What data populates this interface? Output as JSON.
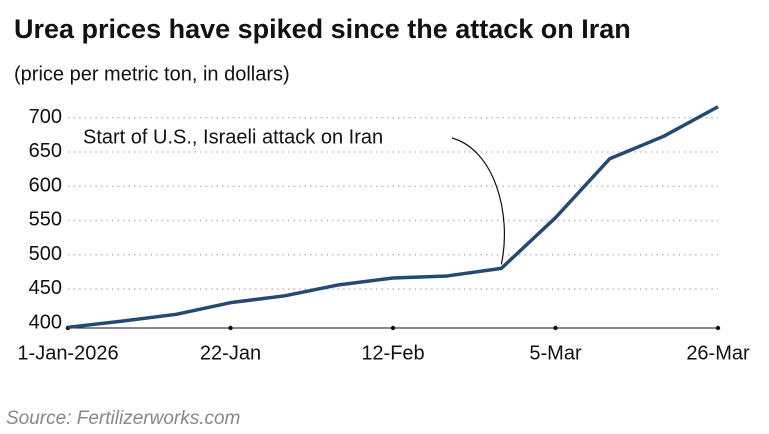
{
  "chart_data": {
    "type": "line",
    "title": "Urea prices have spiked since the attack on Iran",
    "subtitle": "(price per metric ton, in dollars)",
    "source": "Source: Fertilizerworks.com",
    "annotation": "Start of U.S., Israeli attack on Iran",
    "categories": [
      "1-Jan-2026",
      null,
      null,
      "22-Jan",
      null,
      null,
      "12-Feb",
      null,
      null,
      "5-Mar",
      null,
      null,
      "26-Mar"
    ],
    "series": [
      {
        "name": "Urea",
        "color": "#244a73",
        "values": [
          394,
          403,
          413,
          430,
          440,
          456,
          466,
          469,
          480,
          554,
          640,
          673,
          716
        ]
      }
    ],
    "ylim": [
      393,
      720
    ],
    "yticks": [
      400,
      450,
      500,
      550,
      600,
      650,
      700
    ],
    "grid": true
  }
}
